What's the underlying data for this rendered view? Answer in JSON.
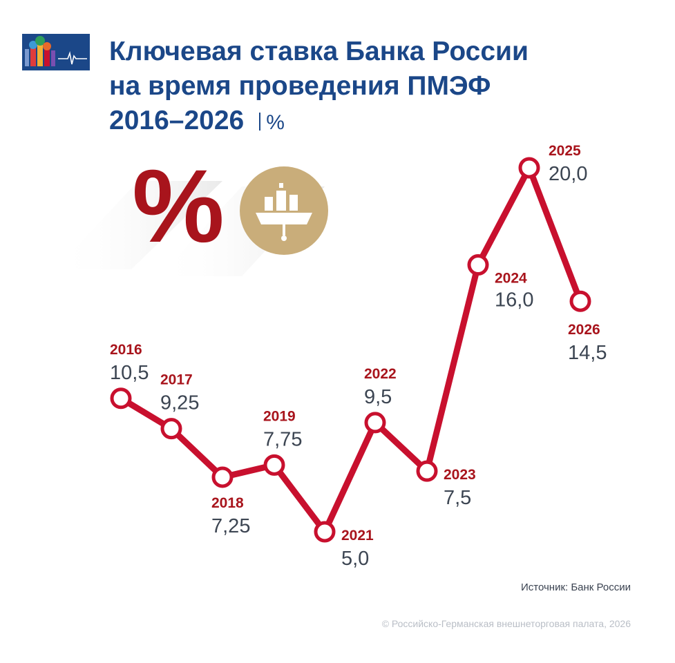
{
  "header": {
    "title_lines": [
      "Ключевая ставка Банка России",
      "на время проведения ПМЭФ",
      "2016–2026"
    ],
    "unit": "%"
  },
  "decor": {
    "percent_symbol": "%",
    "colors": {
      "accent_red": "#c8102e",
      "dark_red": "#a8141c",
      "gold": "#c9ad7a",
      "navy": "#1b4788",
      "value_gray": "#3c4552"
    }
  },
  "chart_data": {
    "type": "line",
    "title": "Ключевая ставка Банка России на время проведения ПМЭФ 2016–2026",
    "unit": "%",
    "categories": [
      "2016",
      "2017",
      "2018",
      "2019",
      "2021",
      "2022",
      "2023",
      "2024",
      "2025",
      "2026"
    ],
    "series": [
      {
        "values": [
          10.5,
          9.25,
          7.25,
          7.75,
          5.0,
          9.5,
          7.5,
          16.0,
          20.0,
          14.5
        ],
        "value_labels": [
          "10,5",
          "9,25",
          "7,25",
          "7,75",
          "5,0",
          "9,5",
          "7,5",
          "16,0",
          "20,0",
          "14,5"
        ]
      }
    ],
    "ylim": [
      5,
      20
    ],
    "grid": false,
    "legend": "none"
  },
  "footer": {
    "source": "Источник: Банк России",
    "copyright": "© Российско-Германская внешнеторговая палата, 2026"
  }
}
